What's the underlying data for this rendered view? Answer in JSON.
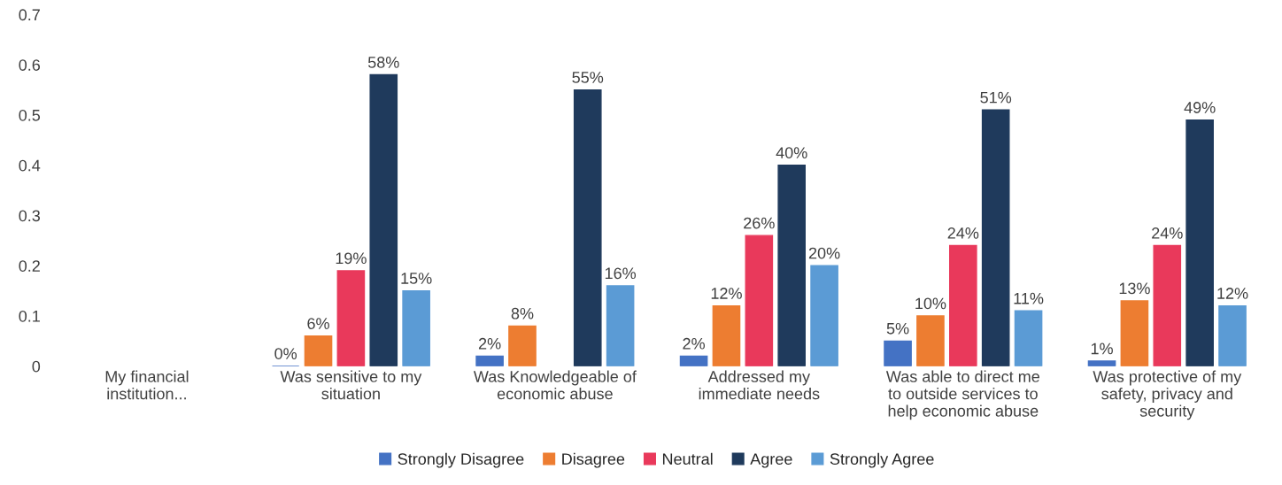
{
  "chart_data": {
    "type": "bar",
    "categories": [
      "My financial\ninstitution...",
      "Was sensitive to my\nsituation",
      "Was Knowledgeable of\neconomic abuse",
      "Addressed my\nimmediate needs",
      "Was able to direct me\nto outside services to\nhelp economic abuse",
      "Was protective of my\nsafety, privacy and\nsecurity"
    ],
    "series": [
      {
        "name": "Strongly Disagree",
        "color": "#4472c4",
        "values": [
          null,
          0,
          0.02,
          0.02,
          0.05,
          0.01
        ],
        "value_labels": [
          null,
          "0%",
          "2%",
          "2%",
          "5%",
          "1%"
        ]
      },
      {
        "name": "Disagree",
        "color": "#ed7d31",
        "values": [
          null,
          0.06,
          0.08,
          0.12,
          0.1,
          0.13
        ],
        "value_labels": [
          null,
          "6%",
          "8%",
          "12%",
          "10%",
          "13%"
        ]
      },
      {
        "name": "Neutral",
        "color": "#e9395b",
        "values": [
          null,
          0.19,
          null,
          0.26,
          0.24,
          0.24
        ],
        "value_labels": [
          null,
          "19%",
          null,
          "26%",
          "24%",
          "24%"
        ]
      },
      {
        "name": "Agree",
        "color": "#1f3a5c",
        "values": [
          null,
          0.58,
          0.55,
          0.4,
          0.51,
          0.49
        ],
        "value_labels": [
          null,
          "58%",
          "55%",
          "40%",
          "51%",
          "49%"
        ]
      },
      {
        "name": "Strongly Agree",
        "color": "#5b9bd5",
        "values": [
          null,
          0.15,
          0.16,
          0.2,
          0.11,
          0.12
        ],
        "value_labels": [
          null,
          "15%",
          "16%",
          "20%",
          "11%",
          "12%"
        ]
      }
    ],
    "ylim": [
      0,
      0.7
    ],
    "yticks": [
      0,
      0.1,
      0.2,
      0.3,
      0.4,
      0.5,
      0.6,
      0.7
    ],
    "grid": false,
    "legend": "bottom"
  }
}
